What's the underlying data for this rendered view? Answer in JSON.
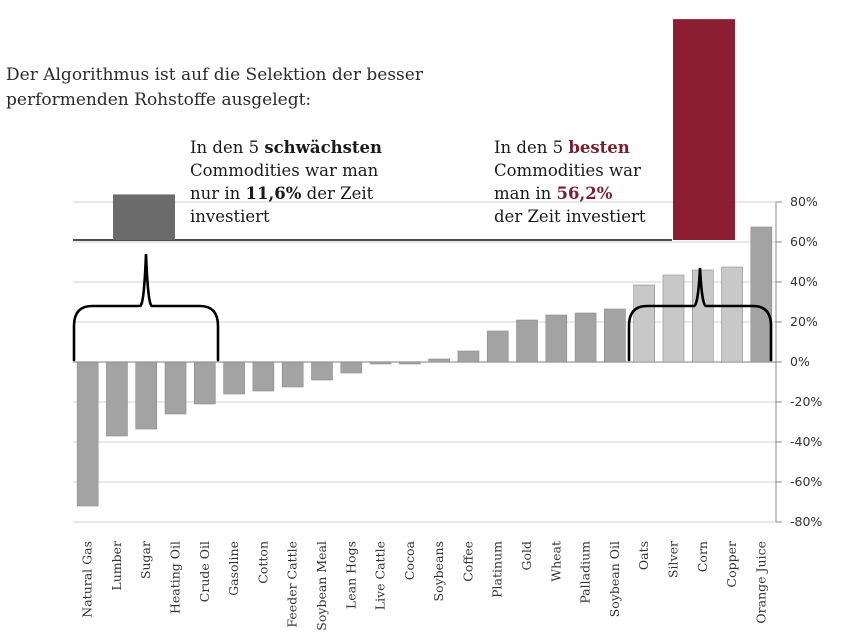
{
  "intro": {
    "line1": "Der Algorithmus ist auf die Selektion der besser",
    "line2": "performenden Rohstoffe ausgelegt:"
  },
  "callout_worst": {
    "pre": "In den 5 ",
    "bold": "schwächsten",
    "line2": "Commodities war man",
    "line3_pre": "nur in ",
    "line3_bold": "11,6%",
    "line3_post": " der Zeit",
    "line4": "investiert",
    "value": 11.6
  },
  "callout_best": {
    "pre": "In den 5 ",
    "bold": "besten",
    "line2": "Commodities war",
    "line3_pre": "man in ",
    "line3_bold": "56,2%",
    "line4": "der Zeit investiert",
    "value": 56.2
  },
  "colors": {
    "bar": "#a3a3a3",
    "bar_best": "#c8c8c8",
    "bar_edge": "#8a8a8a",
    "worst_box": "#6b6b6b",
    "best_box": "#8b1e33",
    "grid": "#d2d2d2"
  },
  "chart_data": {
    "type": "bar",
    "ylim": [
      -80,
      80
    ],
    "y_ticks": [
      80,
      60,
      40,
      20,
      0,
      -20,
      -40,
      -60,
      -80
    ],
    "y_tick_labels": [
      "80%",
      "60%",
      "40%",
      "20%",
      "0%",
      "-20%",
      "-40%",
      "-60%",
      "-80%"
    ],
    "categories": [
      "Natural Gas",
      "Lumber",
      "Sugar",
      "Heating Oil",
      "Crude Oil",
      "Gasoline",
      "Cotton",
      "Feeder Cattle",
      "Soybean Meal",
      "Lean Hogs",
      "Live Cattle",
      "Cocoa",
      "Soybeans",
      "Coffee",
      "Platinum",
      "Gold",
      "Wheat",
      "Palladium",
      "Soybean Oil",
      "Oats",
      "Silver",
      "Corn",
      "Copper",
      "Orange Juice"
    ],
    "values": [
      -72,
      -37,
      -33.5,
      -26,
      -21,
      -16,
      -14.5,
      -12.5,
      -9,
      -5.5,
      -1,
      -1,
      1.5,
      5.5,
      15.5,
      21,
      23.5,
      24.5,
      26.5,
      38.5,
      43.5,
      46,
      47.5,
      67.5
    ],
    "invested_share_pct": {
      "worst_5": 11.6,
      "best_5": 56.2
    },
    "grid": true
  }
}
